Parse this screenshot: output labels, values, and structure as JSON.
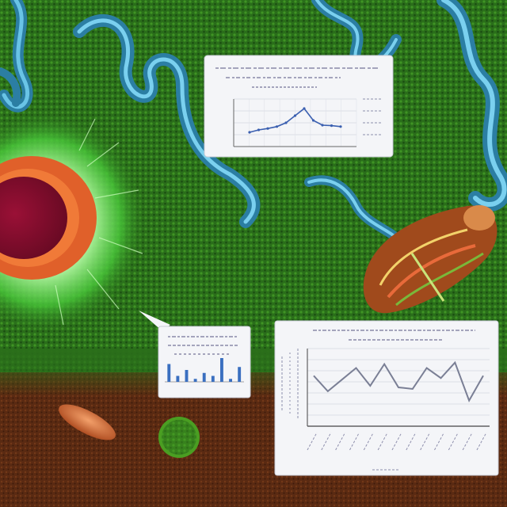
{
  "colors": {
    "field_green": "#2f7a1f",
    "field_dark": "#1e4d14",
    "soil": "#5a2a12",
    "cell_core": "#8a1030",
    "cell_ring": "#e0602a",
    "cell_glow": "#9cf27a",
    "tendril_blue": "#3fa3c8",
    "chart_line": "#3a5fb0",
    "panel_bg": "#f4f5f8",
    "seed": "#c7612f",
    "spore": "#58b52a"
  },
  "panels": {
    "top_chart": {
      "series": [
        {
          "values": [
            3,
            3.5,
            3.8,
            4.2,
            5,
            6.5,
            8,
            5.5,
            4.5,
            4.4,
            4.2
          ]
        }
      ]
    },
    "small_chart": {
      "series": [
        {
          "values": [
            6,
            2,
            4,
            1,
            3,
            2,
            8,
            1,
            5
          ]
        }
      ]
    },
    "large_chart": {
      "series": [
        {
          "values": [
            6.5,
            4.5,
            6,
            7.5,
            5.2,
            8,
            5,
            4.8,
            7.5,
            6.2,
            8.2,
            3.3,
            6.5
          ]
        }
      ]
    }
  }
}
